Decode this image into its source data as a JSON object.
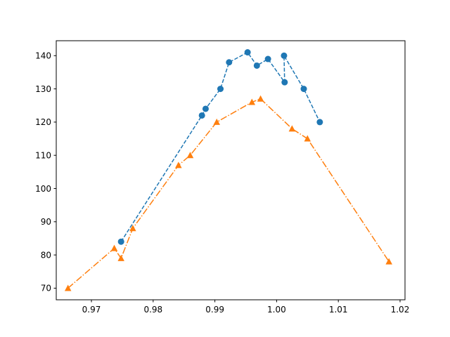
{
  "chart_data": {
    "type": "line",
    "title": "",
    "xlabel": "",
    "ylabel": "",
    "xlim": [
      0.9643,
      1.0208
    ],
    "ylim": [
      66.5,
      144.5
    ],
    "x_ticks": [
      0.97,
      0.98,
      0.99,
      1.0,
      1.01,
      1.02
    ],
    "x_tick_labels": [
      "0.97",
      "0.98",
      "0.99",
      "1.00",
      "1.01",
      "1.02"
    ],
    "y_ticks": [
      70,
      80,
      90,
      100,
      110,
      120,
      130,
      140
    ],
    "y_tick_labels": [
      "70",
      "80",
      "90",
      "100",
      "110",
      "120",
      "130",
      "140"
    ],
    "grid": false,
    "legend": "none",
    "series": [
      {
        "color": "#1f77b4",
        "line_style": "dashed",
        "marker": "circle",
        "x": [
          0.9748,
          0.9879,
          0.9885,
          0.9909,
          0.9923,
          0.9953,
          0.9968,
          0.9986,
          1.0013,
          1.0012,
          1.0044,
          1.007
        ],
        "y": [
          84,
          122,
          124,
          130,
          138,
          141,
          137,
          139,
          132,
          140,
          130,
          120
        ]
      },
      {
        "color": "#ff7f0e",
        "line_style": "dashdot",
        "marker": "triangle",
        "x": [
          0.9662,
          0.9737,
          0.9748,
          0.9767,
          0.9841,
          0.986,
          0.9903,
          0.996,
          0.9974,
          1.0025,
          1.005,
          1.0182
        ],
        "y": [
          70,
          82,
          79,
          88,
          107,
          110,
          120,
          126,
          127,
          118,
          115,
          78
        ]
      }
    ]
  }
}
